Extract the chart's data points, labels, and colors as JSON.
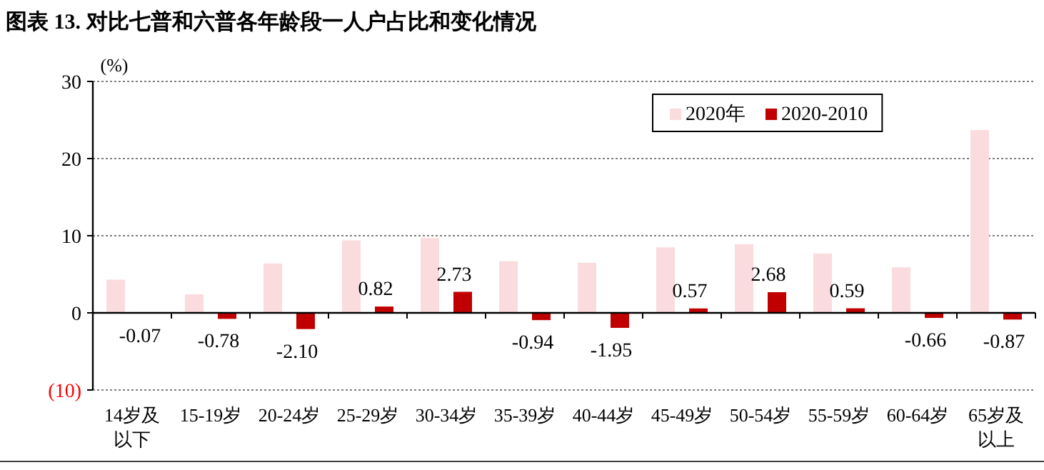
{
  "chart_data": {
    "type": "bar",
    "title": "图表 13. 对比七普和六普各年龄段一人户占比和变化情况",
    "ylabel": "(%)",
    "categories": [
      "14岁及以下",
      "15-19岁",
      "20-24岁",
      "25-29岁",
      "30-34岁",
      "35-39岁",
      "40-44岁",
      "45-49岁",
      "50-54岁",
      "55-59岁",
      "60-64岁",
      "65岁及以上"
    ],
    "series": [
      {
        "name": "2020年",
        "color": "#fadcdf",
        "values": [
          4.3,
          2.4,
          6.4,
          9.4,
          9.7,
          6.7,
          6.5,
          8.5,
          8.9,
          7.7,
          5.9,
          23.7
        ]
      },
      {
        "name": "2020-2010",
        "color": "#c00000",
        "values": [
          -0.07,
          -0.78,
          -2.1,
          0.82,
          2.73,
          -0.94,
          -1.95,
          0.57,
          2.68,
          0.59,
          -0.66,
          -0.87
        ],
        "value_labels": [
          "-0.07",
          "-0.78",
          "-2.10",
          "0.82",
          "2.73",
          "-0.94",
          "-1.95",
          "0.57",
          "2.68",
          "0.59",
          "-0.66",
          "-0.87"
        ]
      }
    ],
    "ylim": [
      -10,
      30
    ],
    "yticks": [
      {
        "value": -10,
        "label": "(10)"
      },
      0,
      10,
      20,
      30
    ],
    "grid": "y",
    "legend": "top right"
  }
}
